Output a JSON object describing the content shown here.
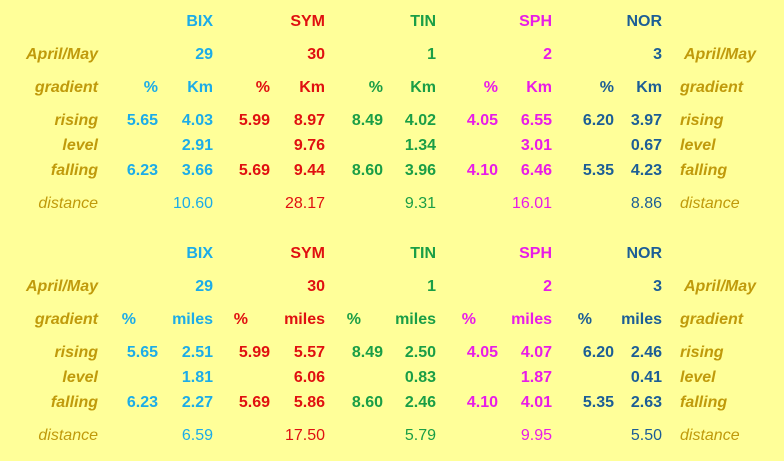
{
  "colors": {
    "background": "#ffff99",
    "label": "#c09a0b",
    "BIX": "#1cace8",
    "SYM": "#e01010",
    "TIN": "#1a9e46",
    "SPH": "#e81ce8",
    "NOR": "#1c5e96"
  },
  "labels": {
    "month": "April/May",
    "gradient": "gradient",
    "rising": "rising",
    "level": "level",
    "falling": "falling",
    "distance": "distance"
  },
  "tables": [
    {
      "unit": "Km",
      "pct": "%",
      "stages": [
        {
          "name": "BIX",
          "day": "29",
          "rising_pct": "5.65",
          "rising": "4.03",
          "level": "2.91",
          "falling_pct": "6.23",
          "falling": "3.66",
          "distance": "10.60"
        },
        {
          "name": "SYM",
          "day": "30",
          "rising_pct": "5.99",
          "rising": "8.97",
          "level": "9.76",
          "falling_pct": "5.69",
          "falling": "9.44",
          "distance": "28.17"
        },
        {
          "name": "TIN",
          "day": "1",
          "rising_pct": "8.49",
          "rising": "4.02",
          "level": "1.34",
          "falling_pct": "8.60",
          "falling": "3.96",
          "distance": "9.31"
        },
        {
          "name": "SPH",
          "day": "2",
          "rising_pct": "4.05",
          "rising": "6.55",
          "level": "3.01",
          "falling_pct": "4.10",
          "falling": "6.46",
          "distance": "16.01"
        },
        {
          "name": "NOR",
          "day": "3",
          "rising_pct": "6.20",
          "rising": "3.97",
          "level": "0.67",
          "falling_pct": "5.35",
          "falling": "4.23",
          "distance": "8.86"
        }
      ]
    },
    {
      "unit": "miles",
      "pct": "%",
      "stages": [
        {
          "name": "BIX",
          "day": "29",
          "rising_pct": "5.65",
          "rising": "2.51",
          "level": "1.81",
          "falling_pct": "6.23",
          "falling": "2.27",
          "distance": "6.59"
        },
        {
          "name": "SYM",
          "day": "30",
          "rising_pct": "5.99",
          "rising": "5.57",
          "level": "6.06",
          "falling_pct": "5.69",
          "falling": "5.86",
          "distance": "17.50"
        },
        {
          "name": "TIN",
          "day": "1",
          "rising_pct": "8.49",
          "rising": "2.50",
          "level": "0.83",
          "falling_pct": "8.60",
          "falling": "2.46",
          "distance": "5.79"
        },
        {
          "name": "SPH",
          "day": "2",
          "rising_pct": "4.05",
          "rising": "4.07",
          "level": "1.87",
          "falling_pct": "4.10",
          "falling": "4.01",
          "distance": "9.95"
        },
        {
          "name": "NOR",
          "day": "3",
          "rising_pct": "6.20",
          "rising": "2.46",
          "level": "0.41",
          "falling_pct": "5.35",
          "falling": "2.63",
          "distance": "5.50"
        }
      ]
    }
  ]
}
